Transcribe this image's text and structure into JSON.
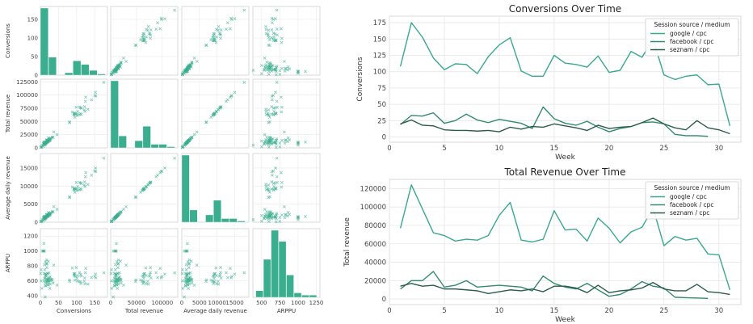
{
  "chart_data": [
    {
      "type": "scatter",
      "variables": [
        "Conversions",
        "Total revenue",
        "Average daily revenue",
        "ARPPU"
      ],
      "axes": {
        "Conversions": {
          "range": [
            0,
            185
          ],
          "ticks": [
            0,
            50,
            100,
            150
          ],
          "tick_labels": [
            "0",
            "50",
            "100",
            "150"
          ]
        },
        "Total revenue": {
          "range": [
            0,
            130000
          ],
          "ticks": [
            0,
            25000,
            50000,
            75000,
            100000,
            125000
          ],
          "tick_labels": [
            "0",
            "25000",
            "50000",
            "75000",
            "100000",
            "125000"
          ],
          "x_ticks": [
            0,
            50000,
            100000
          ],
          "x_tick_labels": [
            "0",
            "50000",
            "100000"
          ]
        },
        "Average daily revenue": {
          "range": [
            0,
            19000
          ],
          "ticks": [
            0,
            5000,
            10000,
            15000
          ],
          "tick_labels": [
            "0",
            "5000",
            "10000",
            "15000"
          ]
        },
        "ARPPU": {
          "range": [
            380,
            1300
          ],
          "ticks": [
            400,
            600,
            800,
            1000,
            1200
          ],
          "tick_labels": [
            "400",
            "600",
            "800",
            "1000",
            "1200"
          ],
          "x_ticks": [
            500,
            750,
            1000,
            1250
          ],
          "x_tick_labels": [
            "500",
            "750",
            "1000",
            "1250"
          ]
        }
      },
      "histograms": {
        "Conversions": {
          "range": [
            0,
            180
          ],
          "bins": 8,
          "counts": [
            56,
            15,
            0,
            2,
            12,
            9,
            4,
            1
          ]
        },
        "Total revenue": {
          "range": [
            0,
            125000
          ],
          "bins": 8,
          "counts": [
            56,
            10,
            0,
            6,
            18,
            3,
            3,
            1
          ]
        },
        "Average daily revenue": {
          "range": [
            0,
            18000
          ],
          "bins": 8,
          "counts": [
            55,
            10,
            0,
            6,
            18,
            3,
            3,
            1
          ]
        },
        "ARPPU": {
          "range": [
            420,
            1260
          ],
          "bins": 8,
          "counts": [
            3,
            17,
            30,
            25,
            10,
            2,
            1,
            1
          ]
        }
      },
      "points": {
        "Conversions": [
          108,
          175,
          153,
          121,
          103,
          112,
          111,
          97,
          123,
          141,
          152,
          101,
          93,
          93,
          125,
          113,
          111,
          107,
          124,
          99,
          102,
          131,
          122,
          150,
          95,
          88,
          93,
          95,
          80,
          81,
          17,
          19,
          33,
          32,
          37,
          21,
          25,
          35,
          26,
          22,
          27,
          24,
          21,
          13,
          46,
          28,
          21,
          18,
          24,
          15,
          8,
          13,
          16,
          22,
          23,
          20,
          4,
          2,
          2,
          1,
          20,
          26,
          18,
          17,
          11,
          10,
          10,
          9,
          10,
          8,
          15,
          12,
          16,
          15,
          20,
          17,
          14,
          10,
          18,
          13,
          15,
          16,
          22,
          29,
          20,
          14,
          11,
          25,
          14,
          11,
          5
        ],
        "Total revenue": [
          77000,
          124000,
          98000,
          72000,
          69000,
          63000,
          65000,
          64000,
          69000,
          91000,
          105000,
          64000,
          62000,
          65000,
          96000,
          75000,
          76000,
          63000,
          88000,
          77000,
          61000,
          73000,
          78000,
          99000,
          58000,
          68000,
          64000,
          66000,
          49000,
          48000,
          10000,
          11000,
          20000,
          20000,
          30000,
          13000,
          15000,
          20000,
          13000,
          14000,
          15000,
          14000,
          13000,
          9000,
          25000,
          17000,
          13000,
          11000,
          17000,
          10000,
          3000,
          5000,
          11000,
          19000,
          14000,
          12000,
          2000,
          1500,
          1200,
          700,
          14000,
          17000,
          14000,
          15000,
          11000,
          11000,
          10000,
          9000,
          6000,
          8000,
          10000,
          9000,
          11000,
          8000,
          14000,
          14000,
          12000,
          7000,
          15000,
          7000,
          9000,
          10000,
          12000,
          18000,
          11000,
          9000,
          9000,
          16000,
          8000,
          7000,
          5000
        ],
        "Average daily revenue": [
          11000,
          17714,
          14000,
          10286,
          9857,
          9000,
          9286,
          9143,
          9857,
          13000,
          15000,
          9143,
          8857,
          9286,
          13714,
          10714,
          10857,
          9000,
          12571,
          11000,
          8714,
          10429,
          11143,
          14143,
          8286,
          9714,
          9143,
          9429,
          7000,
          6857,
          1429,
          1571,
          2857,
          2857,
          4286,
          1857,
          2143,
          2857,
          1857,
          2000,
          2143,
          2000,
          1857,
          1286,
          3571,
          2429,
          1857,
          1571,
          2429,
          1429,
          429,
          714,
          1571,
          2714,
          2000,
          1714,
          286,
          214,
          171,
          100,
          2000,
          2429,
          2000,
          2143,
          1571,
          1571,
          1429,
          1286,
          857,
          1143,
          1429,
          1286,
          1571,
          1143,
          2000,
          2000,
          1714,
          1000,
          2143,
          1000,
          1286,
          1429,
          1714,
          2571,
          1571,
          1286,
          1286,
          2286,
          1143,
          1000,
          714
        ],
        "ARPPU": [
          713,
          709,
          641,
          595,
          670,
          563,
          586,
          660,
          561,
          645,
          691,
          634,
          667,
          699,
          768,
          664,
          685,
          589,
          710,
          778,
          598,
          557,
          639,
          660,
          611,
          773,
          688,
          695,
          613,
          593,
          588,
          579,
          606,
          625,
          811,
          619,
          600,
          571,
          500,
          636,
          556,
          583,
          619,
          692,
          543,
          607,
          619,
          611,
          708,
          667,
          375,
          385,
          688,
          864,
          609,
          600,
          500,
          750,
          600,
          700,
          700,
          654,
          778,
          882,
          1000,
          1100,
          1000,
          1000,
          600,
          1000,
          667,
          750,
          688,
          533,
          700,
          824,
          857,
          700,
          833,
          538,
          600,
          625,
          545,
          621,
          550,
          643,
          818,
          640,
          571,
          636,
          1000
        ]
      }
    },
    {
      "type": "line",
      "title": "Conversions Over Time",
      "xlabel": "Week",
      "ylabel": "Conversions",
      "xlim": [
        0,
        32
      ],
      "ylim": [
        -8,
        185
      ],
      "xticks": [
        0,
        5,
        10,
        15,
        20,
        25,
        30
      ],
      "yticks": [
        0,
        25,
        50,
        75,
        100,
        125,
        150,
        175
      ],
      "grid": true,
      "legend": {
        "title": "Session source / medium",
        "position": "top-right"
      },
      "x": [
        1,
        2,
        3,
        4,
        5,
        6,
        7,
        8,
        9,
        10,
        11,
        12,
        13,
        14,
        15,
        16,
        17,
        18,
        19,
        20,
        21,
        22,
        23,
        24,
        25,
        26,
        27,
        28,
        29,
        30,
        31
      ],
      "series": [
        {
          "name": "google / cpc",
          "color": "#3aa88f",
          "values": [
            108,
            175,
            153,
            121,
            103,
            112,
            111,
            97,
            123,
            141,
            152,
            101,
            93,
            93,
            125,
            113,
            111,
            107,
            124,
            99,
            102,
            131,
            122,
            150,
            95,
            88,
            93,
            95,
            80,
            81,
            17
          ]
        },
        {
          "name": "facebook / cpc",
          "color": "#348a6f",
          "values": [
            19,
            33,
            32,
            37,
            21,
            25,
            35,
            26,
            22,
            27,
            24,
            21,
            13,
            46,
            28,
            21,
            18,
            24,
            15,
            8,
            13,
            16,
            22,
            23,
            20,
            4,
            2,
            2,
            1,
            null,
            null
          ]
        },
        {
          "name": "seznam / cpc",
          "color": "#2a5c47",
          "values": [
            20,
            26,
            18,
            17,
            11,
            10,
            10,
            9,
            10,
            8,
            15,
            12,
            16,
            15,
            20,
            17,
            14,
            10,
            18,
            13,
            15,
            16,
            22,
            29,
            20,
            14,
            11,
            25,
            14,
            11,
            5
          ]
        }
      ]
    },
    {
      "type": "line",
      "title": "Total Revenue Over Time",
      "xlabel": "Week",
      "ylabel": "Total revenue",
      "xlim": [
        0,
        32
      ],
      "ylim": [
        -6000,
        130000
      ],
      "xticks": [
        0,
        5,
        10,
        15,
        20,
        25,
        30
      ],
      "yticks": [
        0,
        20000,
        40000,
        60000,
        80000,
        100000,
        120000
      ],
      "grid": true,
      "legend": {
        "title": "Session source / medium",
        "position": "top-right"
      },
      "x": [
        1,
        2,
        3,
        4,
        5,
        6,
        7,
        8,
        9,
        10,
        11,
        12,
        13,
        14,
        15,
        16,
        17,
        18,
        19,
        20,
        21,
        22,
        23,
        24,
        25,
        26,
        27,
        28,
        29,
        30,
        31
      ],
      "series": [
        {
          "name": "google / cpc",
          "color": "#3aa88f",
          "values": [
            77000,
            124000,
            98000,
            72000,
            69000,
            63000,
            65000,
            64000,
            69000,
            91000,
            105000,
            64000,
            62000,
            65000,
            96000,
            75000,
            76000,
            63000,
            88000,
            77000,
            61000,
            73000,
            78000,
            99000,
            58000,
            68000,
            64000,
            66000,
            49000,
            48000,
            10000
          ]
        },
        {
          "name": "facebook / cpc",
          "color": "#348a6f",
          "values": [
            11000,
            20000,
            20000,
            30000,
            13000,
            15000,
            20000,
            13000,
            14000,
            15000,
            14000,
            13000,
            9000,
            25000,
            17000,
            13000,
            11000,
            17000,
            10000,
            3000,
            5000,
            11000,
            19000,
            14000,
            12000,
            2000,
            1500,
            1200,
            700,
            null,
            null
          ]
        },
        {
          "name": "seznam / cpc",
          "color": "#2a5c47",
          "values": [
            14000,
            17000,
            14000,
            15000,
            11000,
            11000,
            10000,
            9000,
            6000,
            8000,
            10000,
            9000,
            11000,
            8000,
            14000,
            14000,
            12000,
            7000,
            15000,
            7000,
            9000,
            10000,
            12000,
            18000,
            11000,
            9000,
            9000,
            16000,
            8000,
            7000,
            5000
          ]
        }
      ]
    }
  ]
}
